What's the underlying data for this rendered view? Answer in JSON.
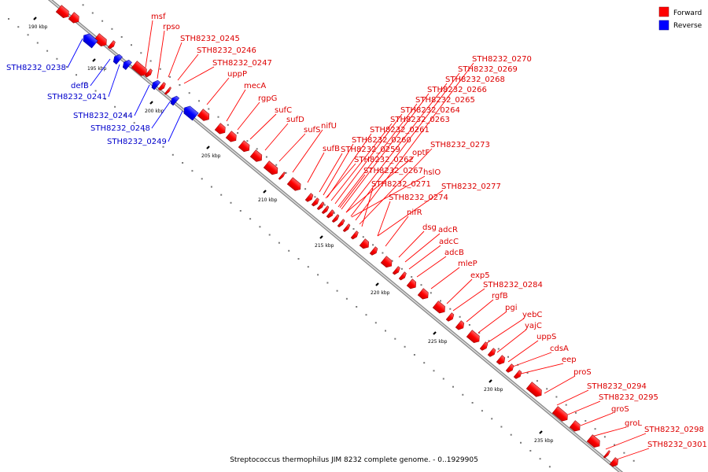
{
  "caption": "Streptococcus thermophilus JIM 8232 complete genome. - 0..1929905",
  "legend": [
    {
      "label": "Forward",
      "color": "#ff0000"
    },
    {
      "label": "Reverse",
      "color": "#0000ff"
    }
  ],
  "colors": {
    "forward": "#ff0000",
    "reverse": "#0000ff",
    "backbone": "#999999"
  },
  "ticks": [
    {
      "label": "190 kbp"
    },
    {
      "label": "195 kbp"
    },
    {
      "label": "200 kbp"
    },
    {
      "label": "205 kbp"
    },
    {
      "label": "210 kbp"
    },
    {
      "label": "215 kbp"
    },
    {
      "label": "220 kbp"
    },
    {
      "label": "225 kbp"
    },
    {
      "label": "230 kbp"
    },
    {
      "label": "235 kbp"
    }
  ],
  "forward_labels": [
    "msf",
    "rpso",
    "STH8232_0245",
    "STH8232_0246",
    "STH8232_0247",
    "uppP",
    "mecA",
    "rgpG",
    "sufC",
    "sufD",
    "sufS",
    "nifU",
    "sufB",
    "STH8232_0270",
    "STH8232_0269",
    "STH8232_0268",
    "STH8232_0266",
    "STH8232_0265",
    "STH8232_0264",
    "STH8232_0263",
    "STH8232_0261",
    "STH8232_0260",
    "STH8232_0259",
    "STH8232_0262",
    "STH8232_0267",
    "optF",
    "STH8232_0273",
    "hslO",
    "STH8232_0271",
    "STH8232_0277",
    "STH8232_0274",
    "nifR",
    "dsg",
    "adcR",
    "adcC",
    "adcB",
    "mleP",
    "exp5",
    "STH8232_0284",
    "rgfB",
    "pgi",
    "yebC",
    "yajC",
    "uppS",
    "cdsA",
    "eep",
    "proS",
    "STH8232_0294",
    "STH8232_0295",
    "groS",
    "groL",
    "STH8232_0298",
    "STH8232_0301"
  ],
  "reverse_labels": [
    "STH8232_0238",
    "defB",
    "STH8232_0241",
    "STH8232_0244",
    "STH8232_0248",
    "STH8232_0249"
  ]
}
